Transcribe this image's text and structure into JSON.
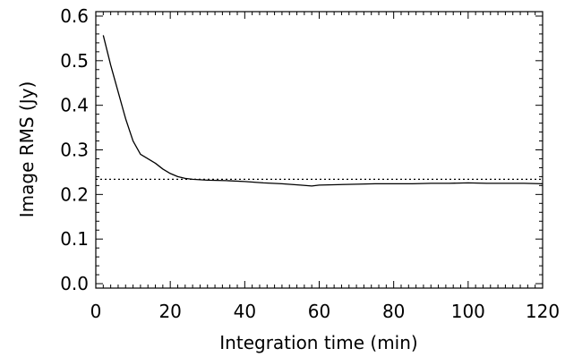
{
  "chart_data": {
    "type": "line",
    "title": "",
    "xlabel": "Integration time (min)",
    "ylabel": "Image RMS (Jy)",
    "xlim": [
      0,
      120
    ],
    "ylim": [
      -0.01,
      0.61
    ],
    "xticks": [
      0,
      20,
      40,
      60,
      80,
      100,
      120
    ],
    "xtick_labels": [
      "0",
      "20",
      "40",
      "60",
      "80",
      "100",
      "120"
    ],
    "yticks": [
      0.0,
      0.1,
      0.2,
      0.3,
      0.4,
      0.5,
      0.6
    ],
    "ytick_labels": [
      "0.0",
      "0.1",
      "0.2",
      "0.3",
      "0.4",
      "0.5",
      "0.6"
    ],
    "grid": false,
    "colors": {
      "line": "#000000",
      "reference": "#000000"
    },
    "reference_line": {
      "y": 0.234,
      "style": "dotted"
    },
    "series": [
      {
        "x": [
          2,
          4,
          6,
          8,
          10,
          12,
          14,
          16,
          18,
          20,
          22,
          24,
          26,
          28,
          30,
          35,
          40,
          45,
          50,
          55,
          58,
          60,
          65,
          70,
          75,
          80,
          85,
          90,
          95,
          100,
          105,
          110,
          115,
          120
        ],
        "values": [
          0.557,
          0.49,
          0.43,
          0.37,
          0.32,
          0.29,
          0.28,
          0.27,
          0.257,
          0.247,
          0.24,
          0.236,
          0.234,
          0.233,
          0.232,
          0.231,
          0.229,
          0.226,
          0.224,
          0.221,
          0.219,
          0.221,
          0.222,
          0.223,
          0.224,
          0.224,
          0.224,
          0.225,
          0.225,
          0.226,
          0.225,
          0.225,
          0.225,
          0.224
        ]
      }
    ]
  }
}
